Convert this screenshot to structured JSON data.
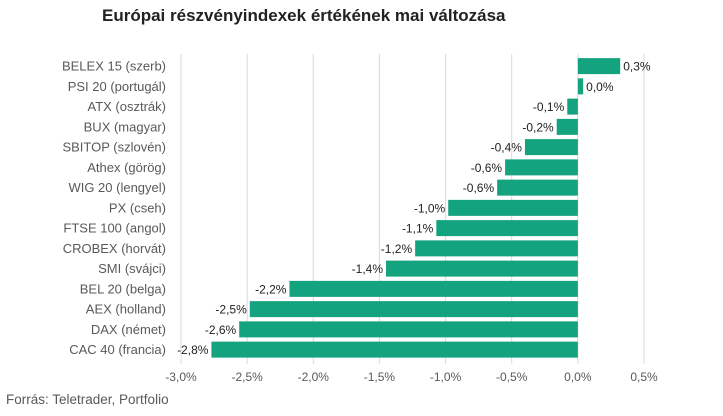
{
  "title": "Európai részvényindexek értékének mai változása",
  "source": "Forrás: Teletrader, Portfolio",
  "colors": {
    "bar": "#13a37f",
    "grid": "#d9d9d9",
    "text": "#595959"
  },
  "chart_data": {
    "type": "bar",
    "orientation": "horizontal",
    "title": "Európai részvényindexek értékének mai változása",
    "categories": [
      "BELEX 15 (szerb)",
      "PSI 20 (portugál)",
      "ATX (osztrák)",
      "BUX (magyar)",
      "SBITOP (szlovén)",
      "Athex (görög)",
      "WIG 20 (lengyel)",
      "PX (cseh)",
      "FTSE 100 (angol)",
      "CROBEX (horvát)",
      "SMI (svájci)",
      "BEL 20 (belga)",
      "AEX (holland)",
      "DAX (német)",
      "CAC 40 (francia)"
    ],
    "values": [
      0.32,
      0.04,
      -0.08,
      -0.16,
      -0.4,
      -0.55,
      -0.61,
      -0.98,
      -1.07,
      -1.23,
      -1.45,
      -2.18,
      -2.48,
      -2.56,
      -2.77
    ],
    "value_labels": [
      "0,3%",
      "0,0%",
      "-0,1%",
      "-0,2%",
      "-0,4%",
      "-0,6%",
      "-0,6%",
      "-1,0%",
      "-1,1%",
      "-1,2%",
      "-1,4%",
      "-2,2%",
      "-2,5%",
      "-2,6%",
      "-2,8%"
    ],
    "xlim": [
      -3.0,
      0.5
    ],
    "xticks": [
      -3.0,
      -2.5,
      -2.0,
      -1.5,
      -1.0,
      -0.5,
      0.0,
      0.5
    ],
    "xtick_labels": [
      "-3,0%",
      "-2,5%",
      "-2,0%",
      "-1,5%",
      "-1,0%",
      "-0,5%",
      "0,0%",
      "0,5%"
    ],
    "grid": true,
    "legend": "none",
    "xlabel": "",
    "ylabel": ""
  }
}
